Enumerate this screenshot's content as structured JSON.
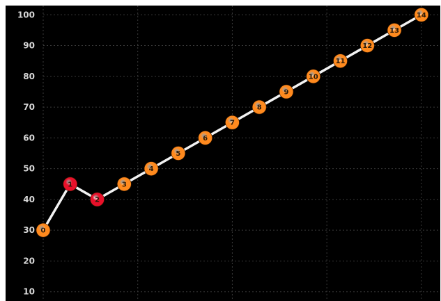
{
  "chart_data": {
    "type": "line",
    "title": "",
    "xlabel": "",
    "ylabel": "",
    "x": [
      0,
      1,
      2,
      3,
      4,
      5,
      6,
      7,
      8,
      9,
      10,
      11,
      12,
      13,
      14
    ],
    "series": [
      {
        "values": [
          30,
          45,
          40,
          45,
          50,
          55,
          60,
          65,
          70,
          75,
          80,
          85,
          90,
          95,
          100
        ],
        "point_labels": [
          "0",
          "1",
          "2",
          "3",
          "4",
          "5",
          "6",
          "7",
          "8",
          "9",
          "10",
          "11",
          "12",
          "13",
          "14"
        ],
        "point_colors": [
          "#ff8a1e",
          "#e8102a",
          "#e8102a",
          "#ff8a1e",
          "#ff8a1e",
          "#ff8a1e",
          "#ff8a1e",
          "#ff8a1e",
          "#ff8a1e",
          "#ff8a1e",
          "#ff8a1e",
          "#ff8a1e",
          "#ff8a1e",
          "#ff8a1e",
          "#ff8a1e"
        ]
      }
    ],
    "y_ticks": [
      "10",
      "20",
      "30",
      "40",
      "50",
      "60",
      "70",
      "80",
      "90",
      "100"
    ],
    "ylim": [
      7,
      103
    ],
    "xlim": [
      0,
      14.7
    ],
    "grid": true,
    "colors": {
      "background": "#000000",
      "line": "#f2f2f2",
      "grid": "#3a3a3a",
      "tick_text": "#d8d8d8"
    }
  }
}
